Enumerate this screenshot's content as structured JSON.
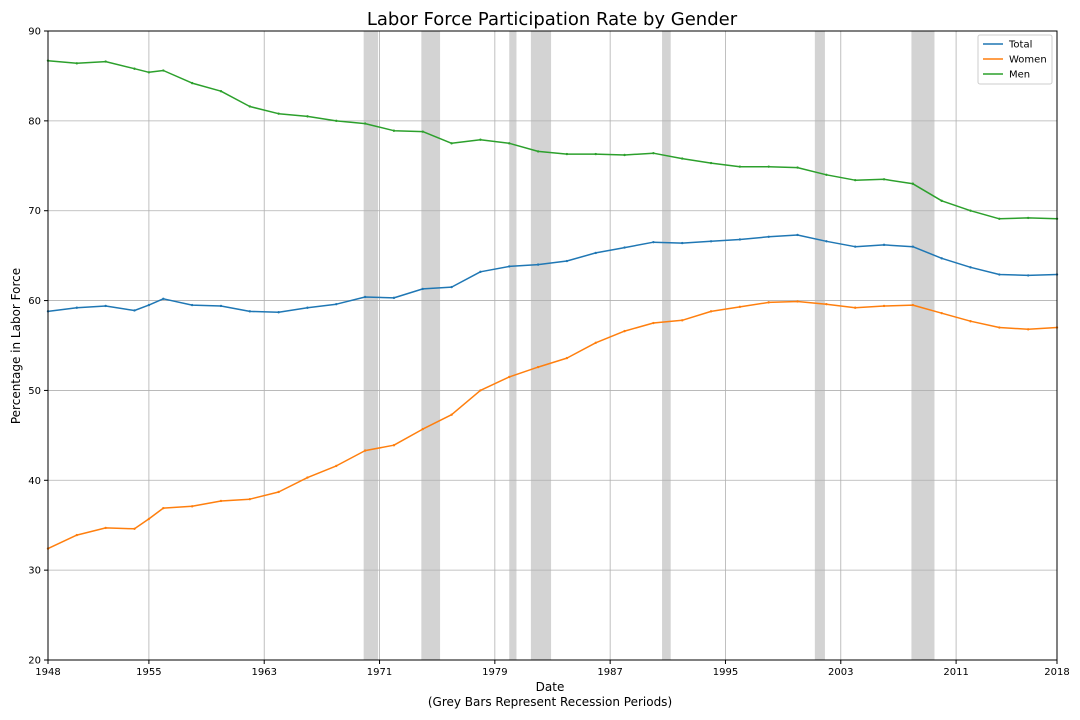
{
  "chart_data": {
    "type": "line",
    "title": "Labor Force Participation Rate by Gender",
    "xlabel": "Date",
    "xlabel_note": "(Grey Bars Represent Recession Periods)",
    "ylabel": "Percentage in Labor Force",
    "xlim": [
      1948,
      2018
    ],
    "ylim": [
      20,
      90
    ],
    "x_ticks": [
      "1948",
      "1955",
      "1963",
      "1971",
      "1979",
      "1987",
      "1995",
      "2003",
      "2011",
      "2018"
    ],
    "y_ticks": [
      "20",
      "30",
      "40",
      "50",
      "60",
      "70",
      "80",
      "90"
    ],
    "grid": true,
    "legend_position": "top-right",
    "recessions": [
      [
        1969.9,
        1970.9
      ],
      [
        1973.9,
        1975.2
      ],
      [
        1980.0,
        1980.5
      ],
      [
        1981.5,
        1982.9
      ],
      [
        1990.6,
        1991.2
      ],
      [
        2001.2,
        2001.9
      ],
      [
        2007.9,
        2009.5
      ]
    ],
    "series": [
      {
        "name": "Total",
        "color": "#1f77b4",
        "x": [
          1948,
          1950,
          1952,
          1954,
          1955,
          1956,
          1958,
          1960,
          1962,
          1964,
          1966,
          1968,
          1970,
          1972,
          1974,
          1976,
          1978,
          1980,
          1982,
          1984,
          1986,
          1988,
          1990,
          1992,
          1994,
          1996,
          1998,
          2000,
          2002,
          2004,
          2006,
          2008,
          2010,
          2012,
          2014,
          2016,
          2018
        ],
        "values": [
          58.8,
          59.2,
          59.4,
          58.9,
          59.5,
          60.2,
          59.5,
          59.4,
          58.8,
          58.7,
          59.2,
          59.6,
          60.4,
          60.3,
          61.3,
          61.5,
          63.2,
          63.8,
          64.0,
          64.4,
          65.3,
          65.9,
          66.5,
          66.4,
          66.6,
          66.8,
          67.1,
          67.3,
          66.6,
          66.0,
          66.2,
          66.0,
          64.7,
          63.7,
          62.9,
          62.8,
          62.9
        ]
      },
      {
        "name": "Women",
        "color": "#ff7f0e",
        "x": [
          1948,
          1950,
          1952,
          1954,
          1955,
          1956,
          1958,
          1960,
          1962,
          1964,
          1966,
          1968,
          1970,
          1972,
          1974,
          1976,
          1978,
          1980,
          1982,
          1984,
          1986,
          1988,
          1990,
          1992,
          1994,
          1996,
          1998,
          2000,
          2002,
          2004,
          2006,
          2008,
          2010,
          2012,
          2014,
          2016,
          2018
        ],
        "values": [
          32.4,
          33.9,
          34.7,
          34.6,
          35.7,
          36.9,
          37.1,
          37.7,
          37.9,
          38.7,
          40.3,
          41.6,
          43.3,
          43.9,
          45.7,
          47.3,
          50.0,
          51.5,
          52.6,
          53.6,
          55.3,
          56.6,
          57.5,
          57.8,
          58.8,
          59.3,
          59.8,
          59.9,
          59.6,
          59.2,
          59.4,
          59.5,
          58.6,
          57.7,
          57.0,
          56.8,
          57.0
        ]
      },
      {
        "name": "Men",
        "color": "#2ca02c",
        "x": [
          1948,
          1950,
          1952,
          1954,
          1955,
          1956,
          1958,
          1960,
          1962,
          1964,
          1966,
          1968,
          1970,
          1972,
          1974,
          1976,
          1978,
          1980,
          1982,
          1984,
          1986,
          1988,
          1990,
          1992,
          1994,
          1996,
          1998,
          2000,
          2002,
          2004,
          2006,
          2008,
          2010,
          2012,
          2014,
          2016,
          2018
        ],
        "values": [
          86.7,
          86.4,
          86.6,
          85.8,
          85.4,
          85.6,
          84.2,
          83.3,
          81.6,
          80.8,
          80.5,
          80.0,
          79.7,
          78.9,
          78.8,
          77.5,
          77.9,
          77.5,
          76.6,
          76.3,
          76.3,
          76.2,
          76.4,
          75.8,
          75.3,
          74.9,
          74.9,
          74.8,
          74.0,
          73.4,
          73.5,
          73.0,
          71.1,
          70.0,
          69.1,
          69.2,
          69.1
        ]
      }
    ]
  }
}
